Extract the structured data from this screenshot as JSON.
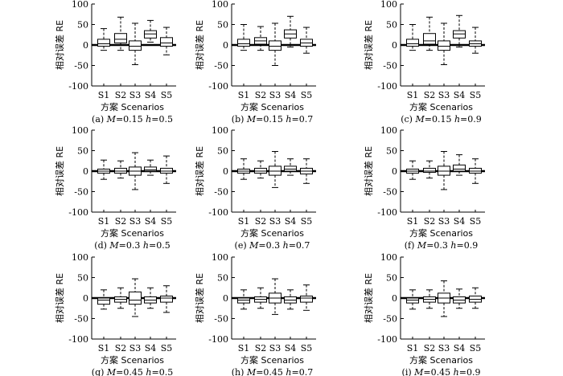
{
  "figure": {
    "colors": {
      "line": "#000000",
      "box_fill": "#ffffff",
      "background": "#ffffff"
    },
    "panels": [
      {
        "caption_prefix": "(a) ",
        "m_symbol": "M",
        "m_value": "=0.15 ",
        "h_symbol": "h",
        "h_value": "=0.5"
      },
      {
        "caption_prefix": "(b) ",
        "m_symbol": "M",
        "m_value": "=0.15 ",
        "h_symbol": "h",
        "h_value": "=0.7"
      },
      {
        "caption_prefix": "(c) ",
        "m_symbol": "M",
        "m_value": "=0.15 ",
        "h_symbol": "h",
        "h_value": "=0.9"
      },
      {
        "caption_prefix": "(d) ",
        "m_symbol": "M",
        "m_value": "=0.3 ",
        "h_symbol": "h",
        "h_value": "=0.5"
      },
      {
        "caption_prefix": "(e) ",
        "m_symbol": "M",
        "m_value": "=0.3 ",
        "h_symbol": "h",
        "h_value": "=0.7"
      },
      {
        "caption_prefix": "(f) ",
        "m_symbol": "M",
        "m_value": "=0.3 ",
        "h_symbol": "h",
        "h_value": "=0.9"
      },
      {
        "caption_prefix": "(g) ",
        "m_symbol": "M",
        "m_value": "=0.45 ",
        "h_symbol": "h",
        "h_value": "=0.5"
      },
      {
        "caption_prefix": "(h) ",
        "m_symbol": "M",
        "m_value": "=0.45 ",
        "h_symbol": "h",
        "h_value": "=0.7"
      },
      {
        "caption_prefix": "(i) ",
        "m_symbol": "M",
        "m_value": "=0.45 ",
        "h_symbol": "h",
        "h_value": "=0.9"
      }
    ]
  },
  "chart_data": [
    {
      "type": "boxplot",
      "panel": "a",
      "title": "(a) M=0.15 h=0.5",
      "xlabel": "方案 Scenarios",
      "ylabel": "相对误差 RE",
      "categories": [
        "S1",
        "S2",
        "S3",
        "S4",
        "S5"
      ],
      "ylim": [
        -100,
        100
      ],
      "yticks": [
        -100,
        -50,
        0,
        50,
        100
      ],
      "reference_line": 0,
      "boxes": [
        {
          "whisker_low": -13,
          "q1": -3,
          "median": 3,
          "q3": 14,
          "whisker_high": 40
        },
        {
          "whisker_low": -13,
          "q1": 5,
          "median": 14,
          "q3": 28,
          "whisker_high": 68
        },
        {
          "whisker_low": -48,
          "q1": -13,
          "median": -3,
          "q3": 10,
          "whisker_high": 53
        },
        {
          "whisker_low": 7,
          "q1": 17,
          "median": 27,
          "q3": 35,
          "whisker_high": 60
        },
        {
          "whisker_low": -24,
          "q1": -3,
          "median": 5,
          "q3": 18,
          "whisker_high": 43
        }
      ]
    },
    {
      "type": "boxplot",
      "panel": "b",
      "title": "(b) M=0.15 h=0.7",
      "xlabel": "方案 Scenarios",
      "ylabel": "相对误差 RE",
      "categories": [
        "S1",
        "S2",
        "S3",
        "S4",
        "S5"
      ],
      "ylim": [
        -100,
        100
      ],
      "yticks": [
        -100,
        -50,
        0,
        50,
        100
      ],
      "reference_line": 0,
      "boxes": [
        {
          "whisker_low": -13,
          "q1": -3,
          "median": 3,
          "q3": 14,
          "whisker_high": 50
        },
        {
          "whisker_low": -13,
          "q1": 2,
          "median": 10,
          "q3": 18,
          "whisker_high": 45
        },
        {
          "whisker_low": -50,
          "q1": -13,
          "median": -3,
          "q3": 10,
          "whisker_high": 53
        },
        {
          "whisker_low": -5,
          "q1": 17,
          "median": 27,
          "q3": 37,
          "whisker_high": 70
        },
        {
          "whisker_low": -20,
          "q1": -3,
          "median": 5,
          "q3": 14,
          "whisker_high": 43
        }
      ]
    },
    {
      "type": "boxplot",
      "panel": "c",
      "title": "(c) M=0.15 h=0.9",
      "xlabel": "方案 Scenarios",
      "ylabel": "相对误差 RE",
      "categories": [
        "S1",
        "S2",
        "S3",
        "S4",
        "S5"
      ],
      "ylim": [
        -100,
        100
      ],
      "yticks": [
        -100,
        -50,
        0,
        50,
        100
      ],
      "reference_line": 0,
      "boxes": [
        {
          "whisker_low": -13,
          "q1": -3,
          "median": 3,
          "q3": 14,
          "whisker_high": 50
        },
        {
          "whisker_low": -13,
          "q1": 2,
          "median": 10,
          "q3": 28,
          "whisker_high": 68
        },
        {
          "whisker_low": -48,
          "q1": -13,
          "median": -3,
          "q3": 10,
          "whisker_high": 53
        },
        {
          "whisker_low": -5,
          "q1": 17,
          "median": 27,
          "q3": 35,
          "whisker_high": 72
        },
        {
          "whisker_low": -20,
          "q1": -3,
          "median": 3,
          "q3": 10,
          "whisker_high": 43
        }
      ]
    },
    {
      "type": "boxplot",
      "panel": "d",
      "title": "(d) M=0.3 h=0.5",
      "xlabel": "方案 Scenarios",
      "ylabel": "相对误差 RE",
      "categories": [
        "S1",
        "S2",
        "S3",
        "S4",
        "S5"
      ],
      "ylim": [
        -100,
        100
      ],
      "yticks": [
        -100,
        -50,
        0,
        50,
        100
      ],
      "reference_line": 0,
      "boxes": [
        {
          "whisker_low": -20,
          "q1": -5,
          "median": 0,
          "q3": 5,
          "whisker_high": 27
        },
        {
          "whisker_low": -17,
          "q1": -5,
          "median": 0,
          "q3": 7,
          "whisker_high": 25
        },
        {
          "whisker_low": -45,
          "q1": -10,
          "median": 0,
          "q3": 10,
          "whisker_high": 45
        },
        {
          "whisker_low": -10,
          "q1": 0,
          "median": 3,
          "q3": 10,
          "whisker_high": 27
        },
        {
          "whisker_low": -30,
          "q1": -5,
          "median": 0,
          "q3": 7,
          "whisker_high": 37
        }
      ]
    },
    {
      "type": "boxplot",
      "panel": "e",
      "title": "(e) M=0.3 h=0.7",
      "xlabel": "方案 Scenarios",
      "ylabel": "相对误差 RE",
      "categories": [
        "S1",
        "S2",
        "S3",
        "S4",
        "S5"
      ],
      "ylim": [
        -100,
        100
      ],
      "yticks": [
        -100,
        -50,
        0,
        50,
        100
      ],
      "reference_line": 0,
      "boxes": [
        {
          "whisker_low": -20,
          "q1": -5,
          "median": 0,
          "q3": 5,
          "whisker_high": 30
        },
        {
          "whisker_low": -17,
          "q1": -5,
          "median": 0,
          "q3": 7,
          "whisker_high": 25
        },
        {
          "whisker_low": -40,
          "q1": -10,
          "median": 0,
          "q3": 12,
          "whisker_high": 48
        },
        {
          "whisker_low": -10,
          "q1": 0,
          "median": 5,
          "q3": 12,
          "whisker_high": 30
        },
        {
          "whisker_low": -30,
          "q1": -7,
          "median": 0,
          "q3": 7,
          "whisker_high": 30
        }
      ]
    },
    {
      "type": "boxplot",
      "panel": "f",
      "title": "(f) M=0.3 h=0.9",
      "xlabel": "方案 Scenarios",
      "ylabel": "相对误差 RE",
      "categories": [
        "S1",
        "S2",
        "S3",
        "S4",
        "S5"
      ],
      "ylim": [
        -100,
        100
      ],
      "yticks": [
        -100,
        -50,
        0,
        50,
        100
      ],
      "reference_line": 0,
      "boxes": [
        {
          "whisker_low": -20,
          "q1": -5,
          "median": 0,
          "q3": 5,
          "whisker_high": 25
        },
        {
          "whisker_low": -17,
          "q1": -3,
          "median": 0,
          "q3": 7,
          "whisker_high": 25
        },
        {
          "whisker_low": -45,
          "q1": -10,
          "median": 0,
          "q3": 12,
          "whisker_high": 48
        },
        {
          "whisker_low": -10,
          "q1": 0,
          "median": 5,
          "q3": 15,
          "whisker_high": 40
        },
        {
          "whisker_low": -30,
          "q1": -5,
          "median": 0,
          "q3": 7,
          "whisker_high": 30
        }
      ]
    },
    {
      "type": "boxplot",
      "panel": "g",
      "title": "(g) M=0.45 h=0.5",
      "xlabel": "方案 Scenarios",
      "ylabel": "相对误差 RE",
      "categories": [
        "S1",
        "S2",
        "S3",
        "S4",
        "S5"
      ],
      "ylim": [
        -100,
        100
      ],
      "yticks": [
        -100,
        -50,
        0,
        50,
        100
      ],
      "reference_line": 0,
      "boxes": [
        {
          "whisker_low": -27,
          "q1": -15,
          "median": -5,
          "q3": 0,
          "whisker_high": 20
        },
        {
          "whisker_low": -25,
          "q1": -10,
          "median": -3,
          "q3": 3,
          "whisker_high": 25
        },
        {
          "whisker_low": -45,
          "q1": -15,
          "median": -5,
          "q3": 15,
          "whisker_high": 47
        },
        {
          "whisker_low": -25,
          "q1": -12,
          "median": -5,
          "q3": 3,
          "whisker_high": 25
        },
        {
          "whisker_low": -35,
          "q1": -10,
          "median": 0,
          "q3": 5,
          "whisker_high": 30
        }
      ]
    },
    {
      "type": "boxplot",
      "panel": "h",
      "title": "(h) M=0.45 h=0.7",
      "xlabel": "方案 Scenarios",
      "ylabel": "相对误差 RE",
      "categories": [
        "S1",
        "S2",
        "S3",
        "S4",
        "S5"
      ],
      "ylim": [
        -100,
        100
      ],
      "yticks": [
        -100,
        -50,
        0,
        50,
        100
      ],
      "reference_line": 0,
      "boxes": [
        {
          "whisker_low": -27,
          "q1": -12,
          "median": -5,
          "q3": 0,
          "whisker_high": 20
        },
        {
          "whisker_low": -25,
          "q1": -10,
          "median": -3,
          "q3": 3,
          "whisker_high": 25
        },
        {
          "whisker_low": -40,
          "q1": -12,
          "median": 0,
          "q3": 12,
          "whisker_high": 47
        },
        {
          "whisker_low": -27,
          "q1": -12,
          "median": -5,
          "q3": 3,
          "whisker_high": 20
        },
        {
          "whisker_low": -30,
          "q1": -10,
          "median": 0,
          "q3": 5,
          "whisker_high": 32
        }
      ]
    },
    {
      "type": "boxplot",
      "panel": "i",
      "title": "(i) M=0.45 h=0.9",
      "xlabel": "方案 Scenarios",
      "ylabel": "相对误差 RE",
      "categories": [
        "S1",
        "S2",
        "S3",
        "S4",
        "S5"
      ],
      "ylim": [
        -100,
        100
      ],
      "yticks": [
        -100,
        -50,
        0,
        50,
        100
      ],
      "reference_line": 0,
      "boxes": [
        {
          "whisker_low": -27,
          "q1": -12,
          "median": -5,
          "q3": 0,
          "whisker_high": 20
        },
        {
          "whisker_low": -25,
          "q1": -10,
          "median": -3,
          "q3": 3,
          "whisker_high": 20
        },
        {
          "whisker_low": -45,
          "q1": -12,
          "median": 0,
          "q3": 12,
          "whisker_high": 42
        },
        {
          "whisker_low": -25,
          "q1": -12,
          "median": -5,
          "q3": 3,
          "whisker_high": 22
        },
        {
          "whisker_low": -25,
          "q1": -10,
          "median": -3,
          "q3": 5,
          "whisker_high": 25
        }
      ]
    }
  ]
}
